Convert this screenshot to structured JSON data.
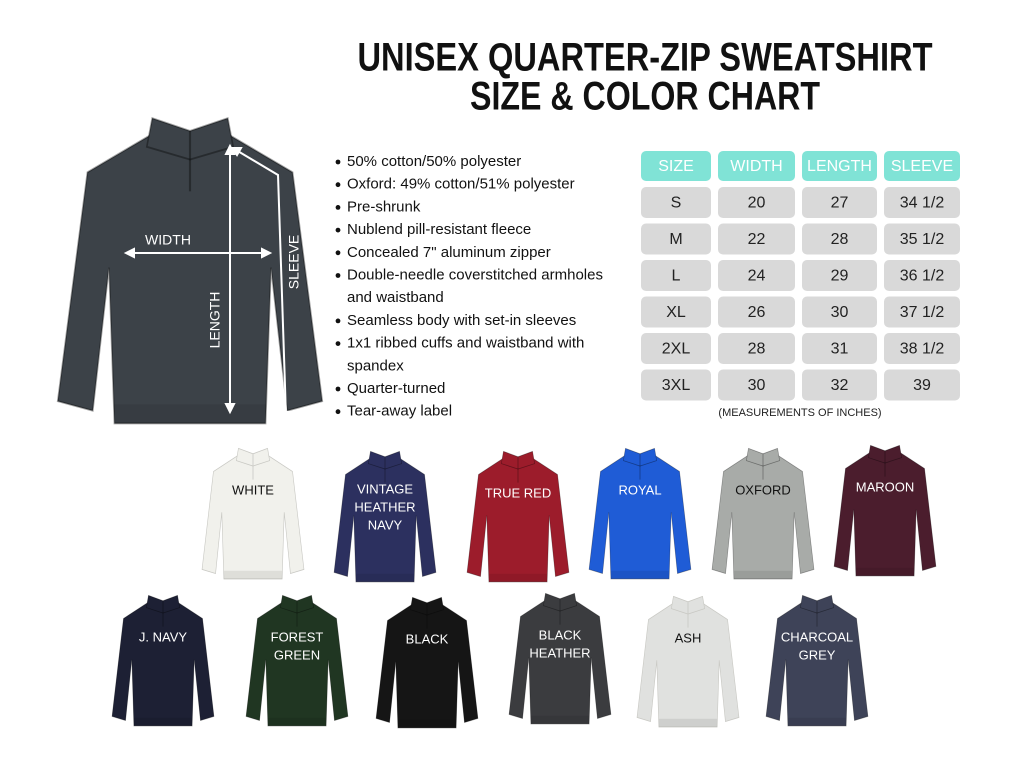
{
  "header": {
    "title": [
      "UNISEX QUARTER-ZIP SWEATSHIRT",
      "SIZE & COLOR CHART"
    ]
  },
  "diagram": {
    "width": "WIDTH",
    "length": "LENGTH",
    "sleeve": "SLEEVE"
  },
  "features": [
    [
      "50% cotton/50% polyester"
    ],
    [
      "Oxford: 49% cotton/51% polyester"
    ],
    [
      "Pre-shrunk"
    ],
    [
      "Nublend pill-resistant fleece"
    ],
    [
      "Concealed 7\" aluminum zipper"
    ],
    [
      "Double-needle coverstitched armholes",
      "and waistband"
    ],
    [
      "Seamless body with set-in sleeves"
    ],
    [
      "1x1 ribbed cuffs and waistband with",
      "spandex"
    ],
    [
      "Quarter-turned"
    ],
    [
      "Tear-away label"
    ]
  ],
  "table": {
    "columns": [
      "SIZE",
      "WIDTH",
      "LENGTH",
      "SLEEVE"
    ],
    "rows": [
      [
        "S",
        "20",
        "27",
        "34 1/2"
      ],
      [
        "M",
        "22",
        "28",
        "35 1/2"
      ],
      [
        "L",
        "24",
        "29",
        "36 1/2"
      ],
      [
        "XL",
        "26",
        "30",
        "37 1/2"
      ],
      [
        "2XL",
        "28",
        "31",
        "38 1/2"
      ],
      [
        "3XL",
        "30",
        "32",
        "39"
      ]
    ],
    "note": "(MEASUREMENTS OF INCHES)"
  },
  "swatches": [
    {
      "label": [
        "WHITE"
      ],
      "color": "#f1f1ec",
      "text_color": "#111"
    },
    {
      "label": [
        "VINTAGE",
        "HEATHER",
        "NAVY"
      ],
      "color": "#2c305f",
      "text_color": "#fff"
    },
    {
      "label": [
        "TRUE RED"
      ],
      "color": "#9c1c2b",
      "text_color": "#fff"
    },
    {
      "label": [
        "ROYAL"
      ],
      "color": "#1f5cd6",
      "text_color": "#fff"
    },
    {
      "label": [
        "OXFORD"
      ],
      "color": "#a8aba8",
      "text_color": "#111"
    },
    {
      "label": [
        "MAROON"
      ],
      "color": "#4b1d2d",
      "text_color": "#fff"
    },
    {
      "label": [
        "J. NAVY"
      ],
      "color": "#1d2034",
      "text_color": "#fff"
    },
    {
      "label": [
        "FOREST",
        "GREEN"
      ],
      "color": "#203622",
      "text_color": "#fff"
    },
    {
      "label": [
        "BLACK"
      ],
      "color": "#151515",
      "text_color": "#fff"
    },
    {
      "label": [
        "BLACK",
        "HEATHER"
      ],
      "color": "#3b3c3f",
      "text_color": "#fff"
    },
    {
      "label": [
        "ASH"
      ],
      "color": "#e0e1df",
      "text_color": "#111"
    },
    {
      "label": [
        "CHARCOAL",
        "GREY"
      ],
      "color": "#3e4358",
      "text_color": "#fff"
    }
  ]
}
